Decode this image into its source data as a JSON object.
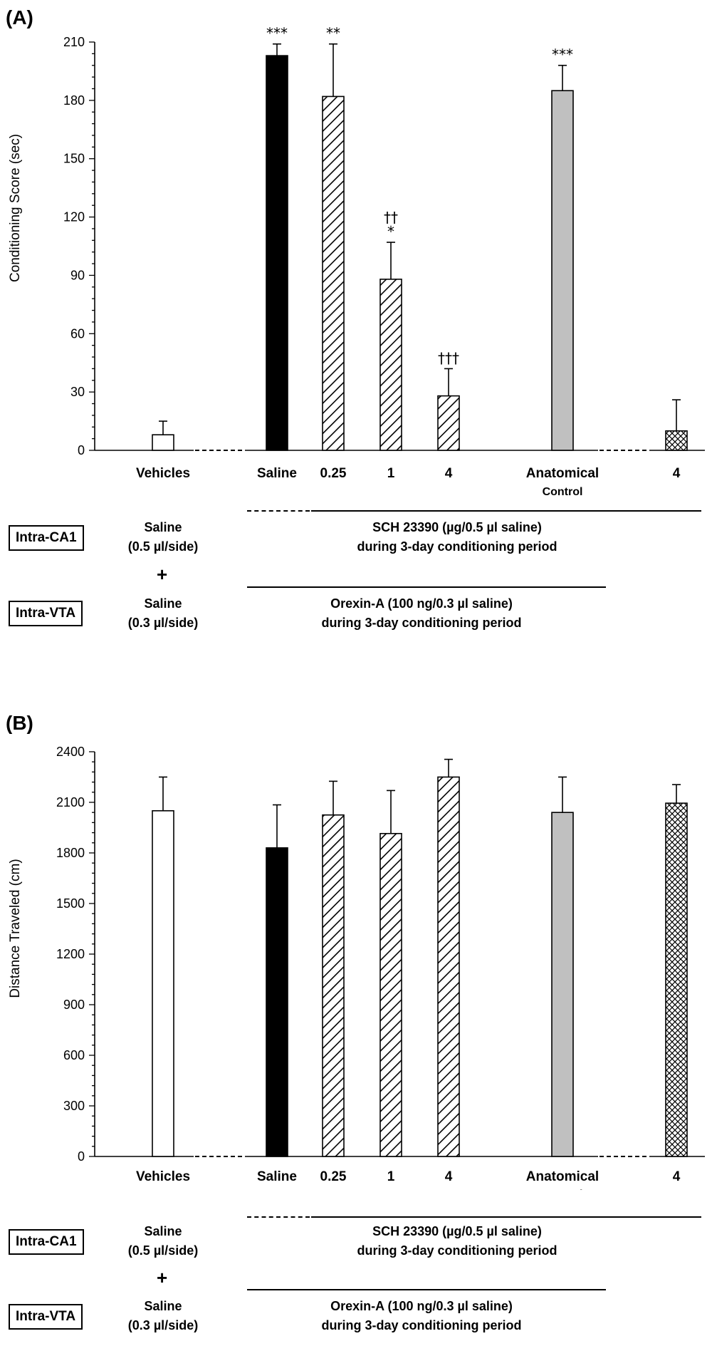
{
  "chart_data": [
    {
      "type": "bar",
      "panel_label": "(A)",
      "ylabel": "Conditioning Score (sec)",
      "ylim": [
        0,
        210
      ],
      "yticks": [
        0,
        30,
        60,
        90,
        120,
        150,
        180,
        210
      ],
      "categories": [
        "Vehicles",
        "Saline",
        "0.25",
        "1",
        "4",
        "Anatomical Control",
        "4"
      ],
      "values": [
        8,
        203,
        182,
        88,
        28,
        185,
        10
      ],
      "errors": [
        7,
        6,
        27,
        19,
        14,
        13,
        16
      ],
      "significance": [
        "",
        "***",
        "**",
        "††\n*",
        "†††",
        "***",
        ""
      ]
    },
    {
      "type": "bar",
      "panel_label": "(B)",
      "ylabel": "Distance Traveled (cm)",
      "ylim": [
        0,
        2400
      ],
      "yticks": [
        0,
        300,
        600,
        900,
        1200,
        1500,
        1800,
        2100,
        2400
      ],
      "categories": [
        "Vehicles",
        "Saline",
        "0.25",
        "1",
        "4",
        "Anatomical Control",
        "4"
      ],
      "values": [
        2050,
        1830,
        2025,
        1915,
        2250,
        2040,
        2095
      ],
      "errors": [
        200,
        255,
        200,
        255,
        105,
        210,
        110
      ],
      "significance": [
        "",
        "",
        "",
        "",
        "",
        "",
        ""
      ]
    }
  ],
  "category_labels": {
    "vehicles": "Vehicles",
    "saline": "Saline",
    "d025": "0.25",
    "d1": "1",
    "d4": "4",
    "anatomical_line1": "Anatomical",
    "anatomical_line2": "Control",
    "d4b": "4"
  },
  "treatment": {
    "ca1_box": "Intra-CA1",
    "vta_box": "Intra-VTA",
    "saline_ca1_line1": "Saline",
    "saline_ca1_line2": "(0.5 µl/side)",
    "plus": "+",
    "saline_vta_line1": "Saline",
    "saline_vta_line2": "(0.3 µl/side)",
    "sch_line1": "SCH 23390 (µg/0.5 µl saline)",
    "sch_line2": "during 3-day conditioning period",
    "orexin_line1": "Orexin-A (100 ng/0.3 µl saline)",
    "orexin_line2": "during 3-day conditioning period"
  },
  "colors": {
    "vehicle": "#ffffff",
    "saline": "#000000",
    "hatch": "#ffffff",
    "anatomical": "#c0c0c0",
    "axis": "#000000"
  }
}
